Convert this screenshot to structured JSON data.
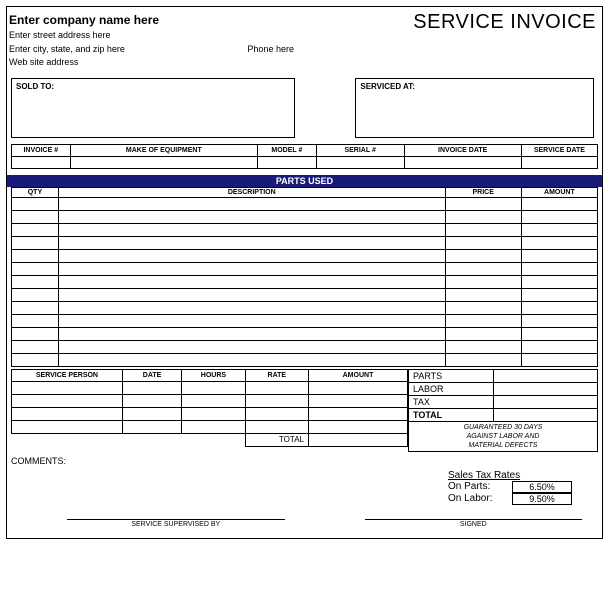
{
  "header": {
    "company_name": "Enter company name here",
    "street": "Enter street address here",
    "city_state_zip": "Enter city, state, and zip here",
    "phone": "Phone here",
    "website": "Web site address",
    "title": "SERVICE INVOICE"
  },
  "address_boxes": {
    "sold_to_label": "SOLD TO:",
    "serviced_at_label": "SERVICED AT:"
  },
  "info_headers": {
    "invoice_no": "INVOICE #",
    "make": "MAKE OF EQUIPMENT",
    "model": "MODEL #",
    "serial": "SERIAL #",
    "inv_date": "INVOICE DATE",
    "svc_date": "SERVICE DATE"
  },
  "parts": {
    "band": "PARTS USED",
    "qty": "QTY",
    "desc": "DESCRIPTION",
    "price": "PRICE",
    "amount": "AMOUNT",
    "row_count": 13
  },
  "labor": {
    "person": "SERVICE PERSON",
    "date": "DATE",
    "hours": "HOURS",
    "rate": "RATE",
    "amount": "AMOUNT",
    "total": "TOTAL",
    "row_count": 4
  },
  "totals": {
    "parts": "PARTS",
    "labor": "LABOR",
    "tax": "TAX",
    "total": "TOTAL"
  },
  "guarantee": {
    "l1": "GUARANTEED 30 DAYS",
    "l2": "AGAINST LABOR AND",
    "l3": "MATERIAL DEFECTS"
  },
  "comments_label": "COMMENTS:",
  "tax_rates": {
    "title": "Sales Tax Rates",
    "parts_label": "On Parts:",
    "parts_value": "6.50%",
    "labor_label": "On Labor:",
    "labor_value": "9.50%"
  },
  "signatures": {
    "supervised": "SERVICE SUPERVISED BY",
    "signed": "SIGNED"
  },
  "colors": {
    "band_bg": "#1a1a7a",
    "border": "#000000"
  }
}
